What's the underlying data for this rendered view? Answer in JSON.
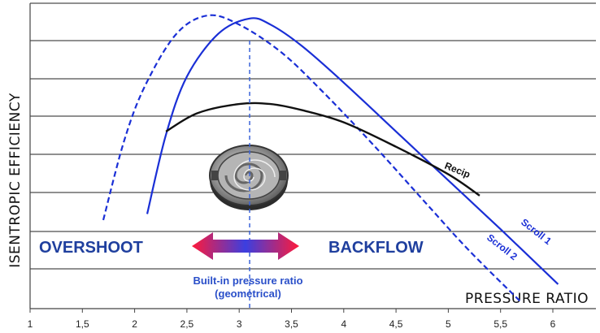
{
  "chart_data": {
    "type": "line",
    "xlabel": "PRESSURE RATIO",
    "ylabel": "ISENTROPIC EFFICIENCY",
    "xlim": [
      1,
      6.4
    ],
    "x_ticks": [
      "1",
      "1,5",
      "2",
      "2,5",
      "3",
      "3,5",
      "4",
      "4,5",
      "5",
      "5,5",
      "6"
    ],
    "y_ticks": [],
    "grid": "horizontal",
    "series": [
      {
        "name": "Scroll 1",
        "color": "#1a2fd6",
        "dash": "solid",
        "points": [
          [
            2.12,
            0.31
          ],
          [
            2.3,
            0.57
          ],
          [
            2.5,
            0.76
          ],
          [
            2.8,
            0.9
          ],
          [
            3.1,
            0.95
          ],
          [
            3.3,
            0.93
          ],
          [
            3.6,
            0.86
          ],
          [
            4.0,
            0.74
          ],
          [
            4.5,
            0.58
          ],
          [
            5.0,
            0.42
          ],
          [
            5.5,
            0.26
          ],
          [
            6.05,
            0.08
          ]
        ]
      },
      {
        "name": "Scroll 2",
        "color": "#1a2fd6",
        "dash": "dashed",
        "points": [
          [
            1.7,
            0.29
          ],
          [
            1.9,
            0.55
          ],
          [
            2.1,
            0.73
          ],
          [
            2.4,
            0.9
          ],
          [
            2.7,
            0.96
          ],
          [
            3.0,
            0.93
          ],
          [
            3.4,
            0.84
          ],
          [
            3.8,
            0.71
          ],
          [
            4.3,
            0.53
          ],
          [
            4.8,
            0.34
          ],
          [
            5.2,
            0.19
          ],
          [
            5.7,
            0.02
          ]
        ]
      },
      {
        "name": "Recip",
        "color": "#111111",
        "dash": "solid",
        "points": [
          [
            2.3,
            0.58
          ],
          [
            2.6,
            0.64
          ],
          [
            3.0,
            0.67
          ],
          [
            3.3,
            0.67
          ],
          [
            3.6,
            0.65
          ],
          [
            4.0,
            0.61
          ],
          [
            4.5,
            0.53
          ],
          [
            5.0,
            0.44
          ],
          [
            5.3,
            0.37
          ]
        ]
      }
    ],
    "annotations": {
      "overshoot": "OVERSHOOT",
      "backflow": "BACKFLOW",
      "builtin_line1": "Built-in pressure ratio",
      "builtin_line2": "(geometrical)",
      "builtin_x": 3.1
    }
  }
}
